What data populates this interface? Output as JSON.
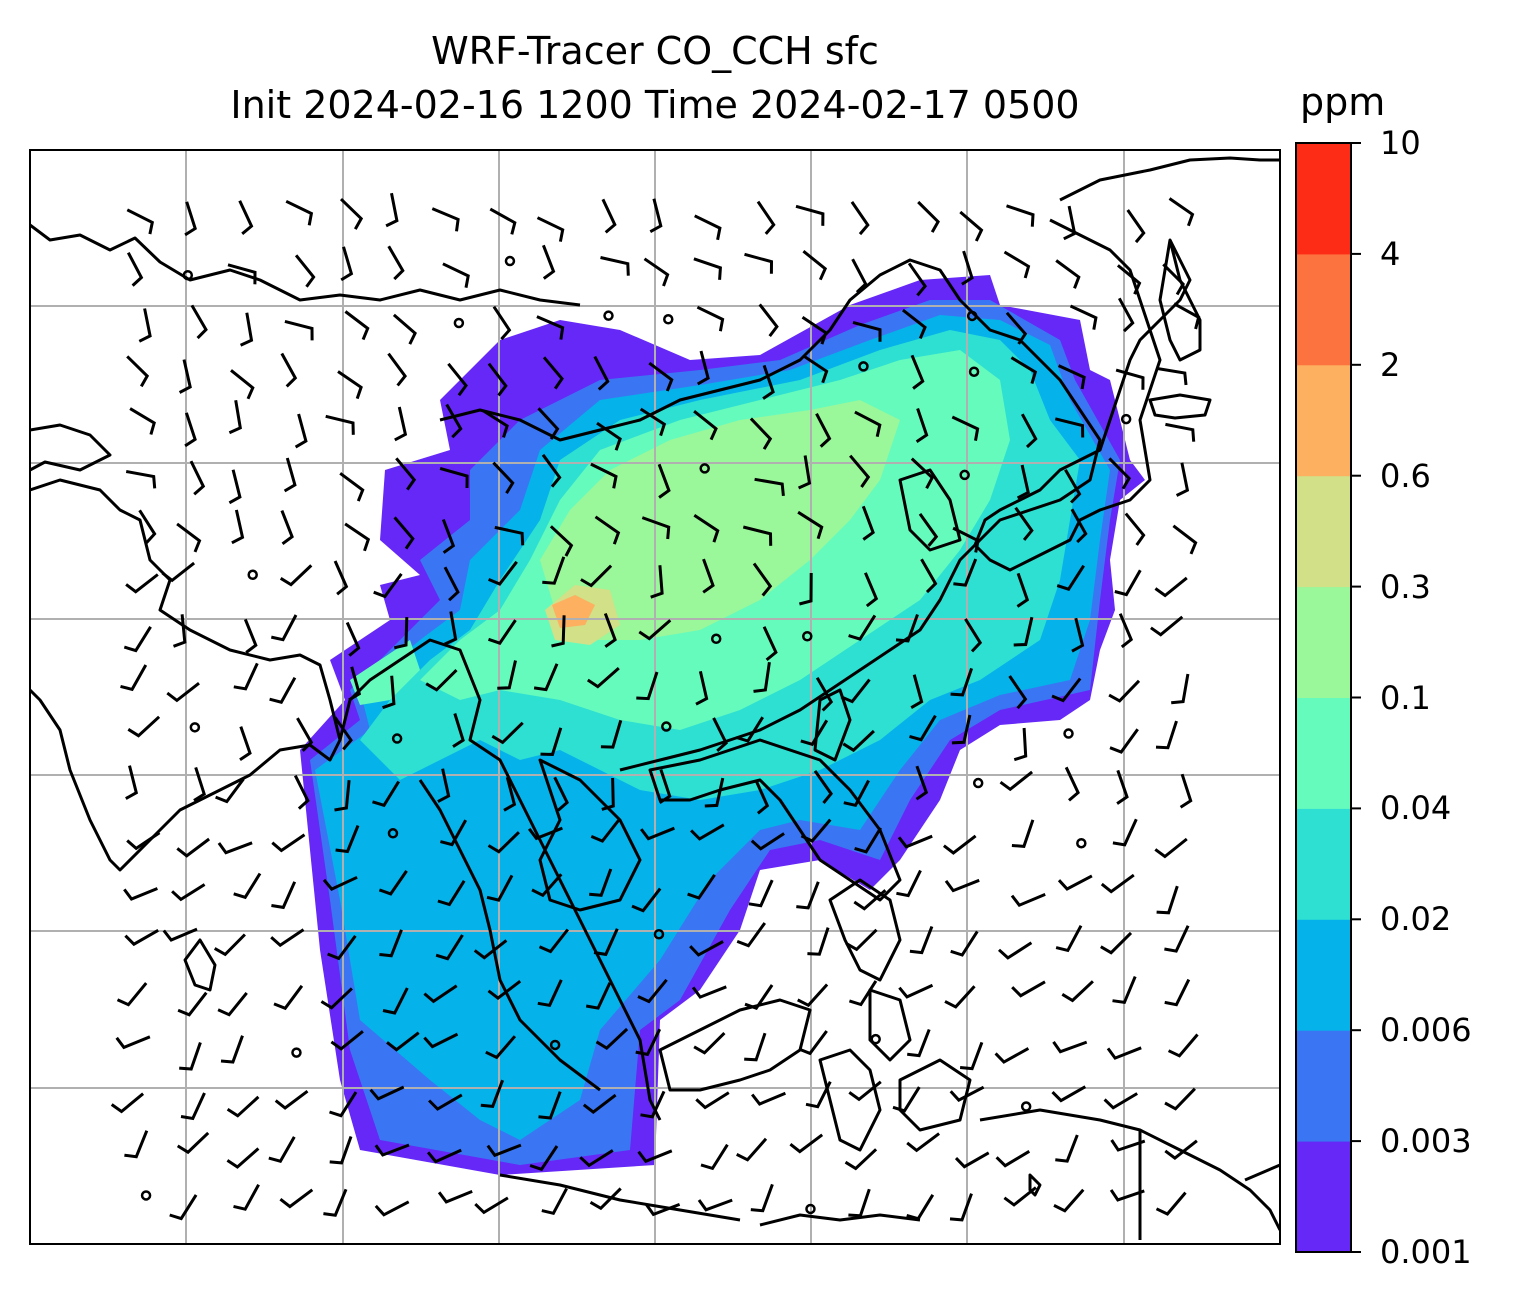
{
  "title": "WRF-Tracer CO_CCH sfc",
  "subtitle": "Init 2024-02-16 1200 Time 2024-02-17 0500",
  "colorbar": {
    "unit": "ppm",
    "levels": [
      "0.001",
      "0.003",
      "0.006",
      "0.02",
      "0.04",
      "0.1",
      "0.3",
      "0.6",
      "2",
      "4",
      "10"
    ],
    "colors": [
      "#6528f7",
      "#3a76f3",
      "#05b2ea",
      "#2ee0d2",
      "#65fbbd",
      "#9af79a",
      "#d2e087",
      "#fcb060",
      "#fd7340",
      "#fd2c17"
    ]
  },
  "map": {
    "frame_color": "#000000",
    "gridline_color": "#b0b0b0",
    "coastline_color": "#000000",
    "barb_color": "#000000"
  }
}
